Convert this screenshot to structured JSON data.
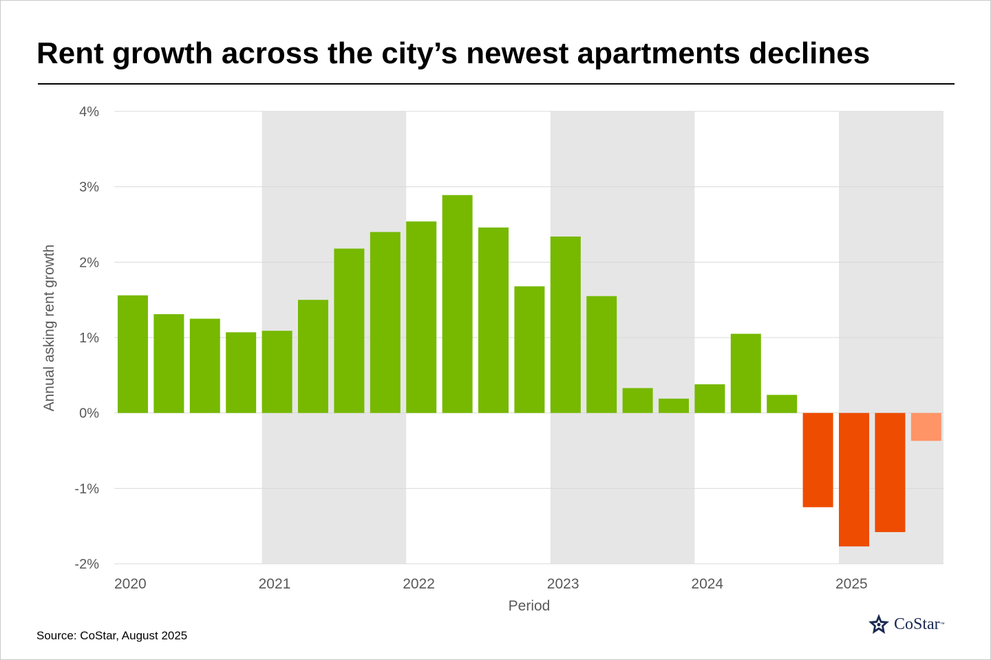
{
  "title": "Rent growth across the city’s newest apartments declines",
  "source": "Source: CoStar, August 2025",
  "logo": {
    "text": "CoStar",
    "tm": "™",
    "icon": "costar-star-icon"
  },
  "colors": {
    "positive": "#76b900",
    "negative": "#ee4c00",
    "estimate": "#ff9466",
    "band": "#e6e6e6",
    "grid": "#d9d9d9",
    "axis_text": "#595959"
  },
  "chart_data": {
    "type": "bar",
    "xlabel": "Period",
    "ylabel": "Annual asking rent growth",
    "ylim": [
      -2,
      4
    ],
    "y_ticks": [
      4,
      3,
      2,
      1,
      0,
      -1,
      -2
    ],
    "y_tick_labels": [
      "4%",
      "3%",
      "2%",
      "1%",
      "0%",
      "-1%",
      "-2%"
    ],
    "year_labels": [
      "2020",
      "2021",
      "2022",
      "2023",
      "2024",
      "2025"
    ],
    "shaded_years": [
      "2021",
      "2023",
      "2025"
    ],
    "categories": [
      "2020 Q1",
      "2020 Q2",
      "2020 Q3",
      "2020 Q4",
      "2021 Q1",
      "2021 Q2",
      "2021 Q3",
      "2021 Q4",
      "2022 Q1",
      "2022 Q2",
      "2022 Q3",
      "2022 Q4",
      "2023 Q1",
      "2023 Q2",
      "2023 Q3",
      "2023 Q4",
      "2024 Q1",
      "2024 Q2",
      "2024 Q3",
      "2024 Q4",
      "2025 Q1",
      "2025 Q2",
      "2025 Q3"
    ],
    "values": [
      1.56,
      1.31,
      1.25,
      1.07,
      1.09,
      1.5,
      2.18,
      2.4,
      2.54,
      2.89,
      2.46,
      1.68,
      2.34,
      1.55,
      0.33,
      0.19,
      0.38,
      1.05,
      0.24,
      -1.25,
      -1.77,
      -1.58,
      -0.37
    ],
    "estimate_index": 22,
    "grid": true
  }
}
